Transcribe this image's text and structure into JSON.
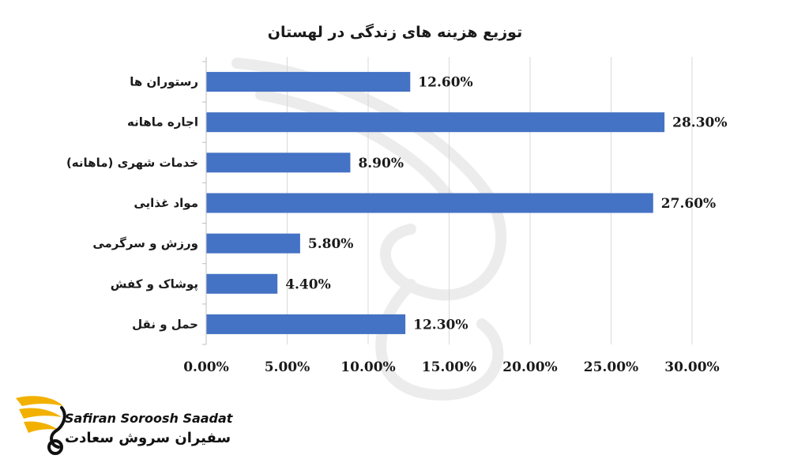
{
  "chart_data": {
    "type": "bar",
    "orientation": "horizontal",
    "title": "توزیع هزینه های زندگی در لهستان",
    "categories": [
      "رستوران ها",
      "اجاره ماهانه",
      "خدمات شهری (ماهانه)",
      "مواد غذایی",
      "ورزش و سرگرمی",
      "پوشاک و کفش",
      "حمل و نقل"
    ],
    "values": [
      12.6,
      28.3,
      8.9,
      27.6,
      5.8,
      4.4,
      12.3
    ],
    "value_labels": [
      "12.60%",
      "28.30%",
      "8.90%",
      "27.60%",
      "5.80%",
      "4.40%",
      "12.30%"
    ],
    "x_ticks": [
      0,
      5,
      10,
      15,
      20,
      25,
      30
    ],
    "x_tick_labels": [
      "0.00%",
      "5.00%",
      "10.00%",
      "15.00%",
      "20.00%",
      "25.00%",
      "30.00%"
    ],
    "xlim": [
      0,
      30
    ],
    "grid": "vertical",
    "legend": "none",
    "bar_color": "#4472C4"
  },
  "logo": {
    "english_text": "Safiran Soroosh Saadat",
    "persian_text": "سفیران سروش سعادت",
    "accent_color": "#F2B100"
  }
}
